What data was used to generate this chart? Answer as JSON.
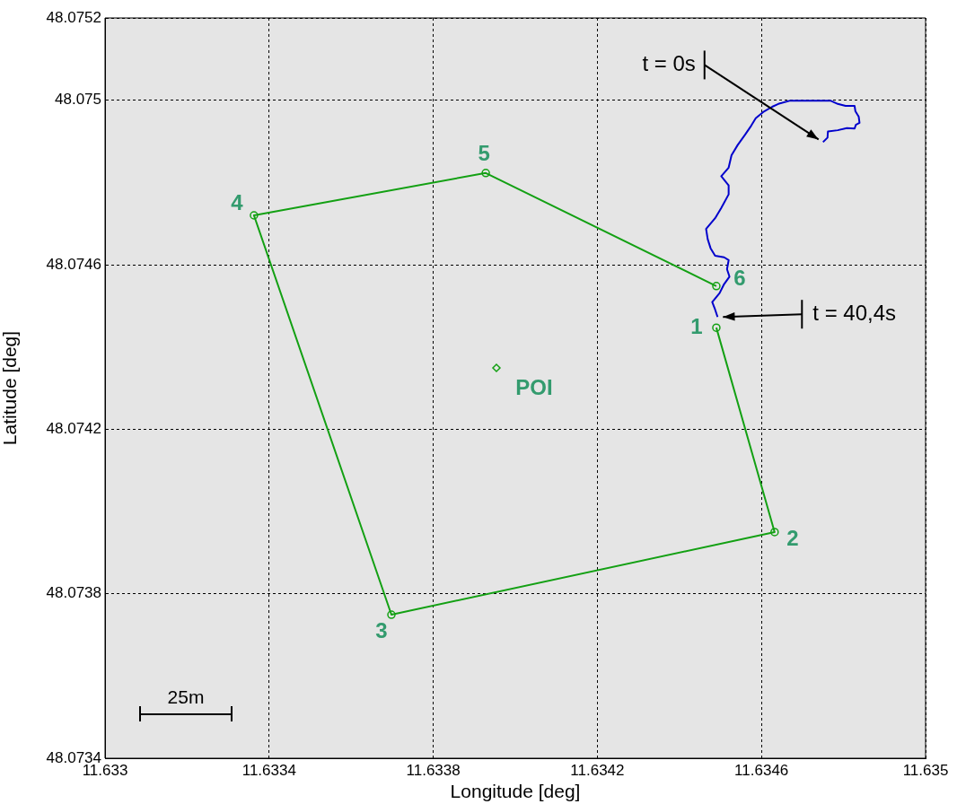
{
  "chart_data": {
    "type": "line",
    "xlabel": "Longitude [deg]",
    "ylabel": "Latitude [deg]",
    "xlim": [
      11.633,
      11.635
    ],
    "xticks": [
      11.633,
      11.6334,
      11.6338,
      11.6342,
      11.6346,
      11.635
    ],
    "ylim": [
      48.0734,
      48.0752
    ],
    "yticks": [
      48.0734,
      48.0738,
      48.0742,
      48.0746,
      48.075,
      48.0752
    ],
    "grid": true,
    "legend": false,
    "series": [
      {
        "type": "line",
        "marker": "circle",
        "color": "#13a013",
        "x": [
          11.63449,
          11.634632,
          11.633698,
          11.633363,
          11.633928,
          11.63449
        ],
        "values": [
          48.074447,
          48.07395,
          48.073749,
          48.07472,
          48.074823,
          48.074548
        ]
      },
      {
        "type": "scatter",
        "marker": "diamond",
        "color": "#13a013",
        "x": [
          11.633954
        ],
        "values": [
          48.074349
        ]
      },
      {
        "type": "line",
        "marker": "none",
        "color": "#0000cc",
        "x": [
          11.63475,
          11.634761,
          11.634762,
          11.634786,
          11.634808,
          11.634827,
          11.63483,
          11.634839,
          11.634837,
          11.634829,
          11.634827,
          11.634805,
          11.634786,
          11.634768,
          11.63467,
          11.634641,
          11.634626,
          11.634604,
          11.634586,
          11.634575,
          11.63456,
          11.634542,
          11.634527,
          11.63452,
          11.634502,
          11.63452,
          11.63452,
          11.634502,
          11.634487,
          11.634465,
          11.634469,
          11.634476,
          11.634487,
          11.634509,
          11.63452,
          11.634516,
          11.634522,
          11.634509,
          11.634498,
          11.63448,
          11.634487,
          11.634493
        ],
        "values": [
          48.074898,
          48.074909,
          48.074924,
          48.074927,
          48.074932,
          48.074931,
          48.07494,
          48.074945,
          48.07496,
          48.074973,
          48.074986,
          48.074986,
          48.074991,
          48.074999,
          48.074999,
          48.074991,
          48.074984,
          48.074971,
          48.074956,
          48.074938,
          48.074916,
          48.074891,
          48.074866,
          48.074836,
          48.074815,
          48.074793,
          48.074771,
          48.074738,
          48.074713,
          48.074687,
          48.074662,
          48.07464,
          48.074622,
          48.074618,
          48.074611,
          48.074589,
          48.074571,
          48.074553,
          48.074531,
          48.074509,
          48.074491,
          48.074473
        ]
      }
    ],
    "annotations": [
      {
        "text": "t = 0s",
        "x": 11.63475,
        "y": 48.074898
      },
      {
        "text": "t = 40,4s",
        "x": 11.634493,
        "y": 48.074473
      },
      {
        "text": "1",
        "x": 11.63449,
        "y": 48.074447
      },
      {
        "text": "2",
        "x": 11.634632,
        "y": 48.07395
      },
      {
        "text": "3",
        "x": 11.633698,
        "y": 48.073749
      },
      {
        "text": "4",
        "x": 11.633363,
        "y": 48.07472
      },
      {
        "text": "5",
        "x": 11.633928,
        "y": 48.074823
      },
      {
        "text": "6",
        "x": 11.63449,
        "y": 48.074548
      },
      {
        "text": "POI",
        "x": 11.633954,
        "y": 48.074349
      },
      "25m"
    ]
  }
}
